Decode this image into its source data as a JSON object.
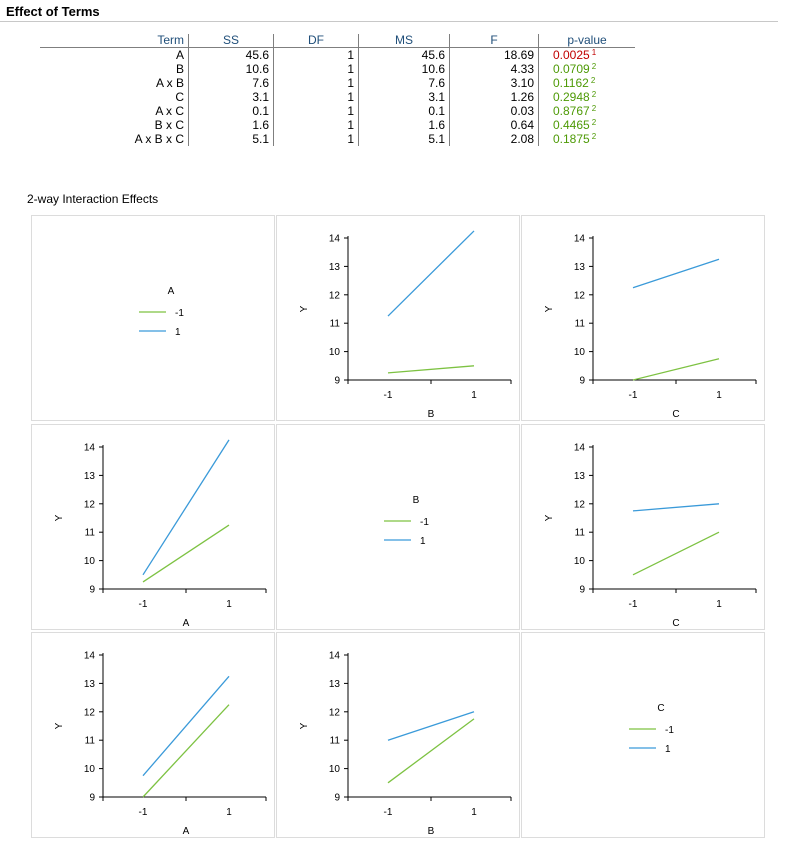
{
  "header": {
    "title": "Effect of Terms"
  },
  "table": {
    "columns": [
      "Term",
      "SS",
      "DF",
      "MS",
      "F",
      "p-value"
    ],
    "rows": [
      {
        "term": "A",
        "ss": "45.6",
        "df": "1",
        "ms": "45.6",
        "f": "18.69",
        "p": "0.0025",
        "mark": "1",
        "sig": true
      },
      {
        "term": "B",
        "ss": "10.6",
        "df": "1",
        "ms": "10.6",
        "f": "4.33",
        "p": "0.0709",
        "mark": "2",
        "sig": false
      },
      {
        "term": "A x B",
        "ss": "7.6",
        "df": "1",
        "ms": "7.6",
        "f": "3.10",
        "p": "0.1162",
        "mark": "2",
        "sig": false
      },
      {
        "term": "C",
        "ss": "3.1",
        "df": "1",
        "ms": "3.1",
        "f": "1.26",
        "p": "0.2948",
        "mark": "2",
        "sig": false
      },
      {
        "term": "A x C",
        "ss": "0.1",
        "df": "1",
        "ms": "0.1",
        "f": "0.03",
        "p": "0.8767",
        "mark": "2",
        "sig": false
      },
      {
        "term": "B x C",
        "ss": "1.6",
        "df": "1",
        "ms": "1.6",
        "f": "0.64",
        "p": "0.4465",
        "mark": "2",
        "sig": false
      },
      {
        "term": "A x B x C",
        "ss": "5.1",
        "df": "1",
        "ms": "5.1",
        "f": "2.08",
        "p": "0.1875",
        "mark": "2",
        "sig": false
      }
    ]
  },
  "interaction": {
    "title": "2-way Interaction Effects"
  },
  "colors": {
    "level_neg": "#7dc242",
    "level_pos": "#3a9ad9",
    "sig": "#c00000",
    "ns": "#4e9a06",
    "header_text": "#1f4e79"
  },
  "chart_data": [
    {
      "type": "legend",
      "cell": [
        0,
        0
      ],
      "factor": "A",
      "entries": [
        "-1",
        "1"
      ]
    },
    {
      "type": "line",
      "cell": [
        0,
        1
      ],
      "xlabel": "B",
      "ylabel": "Y",
      "x": [
        "-1",
        "1"
      ],
      "ylim": [
        9,
        14
      ],
      "yticks": [
        9,
        10,
        11,
        12,
        13,
        14
      ],
      "series": [
        {
          "name": "-1",
          "values": [
            9.25,
            9.5
          ]
        },
        {
          "name": "1",
          "values": [
            11.25,
            14.25
          ]
        }
      ]
    },
    {
      "type": "line",
      "cell": [
        0,
        2
      ],
      "xlabel": "C",
      "ylabel": "Y",
      "x": [
        "-1",
        "1"
      ],
      "ylim": [
        9,
        14
      ],
      "yticks": [
        9,
        10,
        11,
        12,
        13,
        14
      ],
      "series": [
        {
          "name": "-1",
          "values": [
            9.0,
            9.75
          ]
        },
        {
          "name": "1",
          "values": [
            12.25,
            13.25
          ]
        }
      ]
    },
    {
      "type": "line",
      "cell": [
        1,
        0
      ],
      "xlabel": "A",
      "ylabel": "Y",
      "x": [
        "-1",
        "1"
      ],
      "ylim": [
        9,
        14
      ],
      "yticks": [
        9,
        10,
        11,
        12,
        13,
        14
      ],
      "series": [
        {
          "name": "-1",
          "values": [
            9.25,
            11.25
          ]
        },
        {
          "name": "1",
          "values": [
            9.5,
            14.25
          ]
        }
      ]
    },
    {
      "type": "legend",
      "cell": [
        1,
        1
      ],
      "factor": "B",
      "entries": [
        "-1",
        "1"
      ]
    },
    {
      "type": "line",
      "cell": [
        1,
        2
      ],
      "xlabel": "C",
      "ylabel": "Y",
      "x": [
        "-1",
        "1"
      ],
      "ylim": [
        9,
        14
      ],
      "yticks": [
        9,
        10,
        11,
        12,
        13,
        14
      ],
      "series": [
        {
          "name": "-1",
          "values": [
            9.5,
            11.0
          ]
        },
        {
          "name": "1",
          "values": [
            11.75,
            12.0
          ]
        }
      ]
    },
    {
      "type": "line",
      "cell": [
        2,
        0
      ],
      "xlabel": "A",
      "ylabel": "Y",
      "x": [
        "-1",
        "1"
      ],
      "ylim": [
        9,
        14
      ],
      "yticks": [
        9,
        10,
        11,
        12,
        13,
        14
      ],
      "series": [
        {
          "name": "-1",
          "values": [
            9.0,
            12.25
          ]
        },
        {
          "name": "1",
          "values": [
            9.75,
            13.25
          ]
        }
      ]
    },
    {
      "type": "line",
      "cell": [
        2,
        1
      ],
      "xlabel": "B",
      "ylabel": "Y",
      "x": [
        "-1",
        "1"
      ],
      "ylim": [
        9,
        14
      ],
      "yticks": [
        9,
        10,
        11,
        12,
        13,
        14
      ],
      "series": [
        {
          "name": "-1",
          "values": [
            9.5,
            11.75
          ]
        },
        {
          "name": "1",
          "values": [
            11.0,
            12.0
          ]
        }
      ]
    },
    {
      "type": "legend",
      "cell": [
        2,
        2
      ],
      "factor": "C",
      "entries": [
        "-1",
        "1"
      ]
    }
  ]
}
